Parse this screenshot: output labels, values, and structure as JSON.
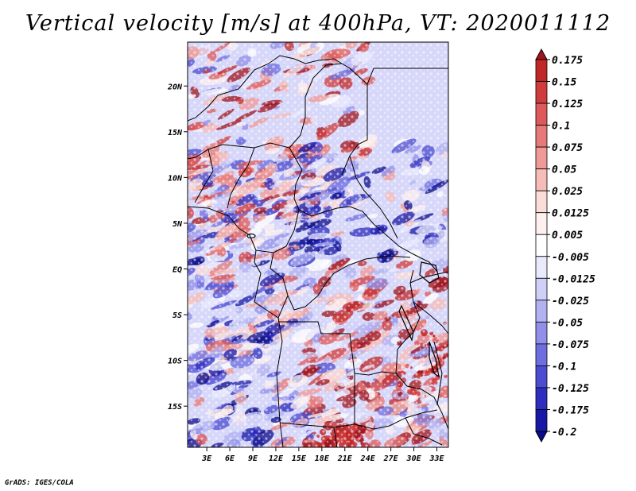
{
  "title": "Vertical velocity [m/s] at 400hPa, VT: 2020011112",
  "credit": "GrADS: IGES/COLA",
  "map": {
    "lat_labels": [
      "20N",
      "15N",
      "10N",
      "5N",
      "EQ",
      "5S",
      "10S",
      "15S"
    ],
    "lon_labels": [
      "3E",
      "6E",
      "9E",
      "12E",
      "15E",
      "18E",
      "21E",
      "24E",
      "27E",
      "30E",
      "33E"
    ],
    "extent": {
      "lon_min": 0.5,
      "lon_max": 34.5,
      "lat_min": -19.5,
      "lat_max": 24.8
    }
  },
  "colorbar": {
    "labels": [
      "0.175",
      "0.15",
      "0.125",
      "0.1",
      "0.075",
      "0.05",
      "0.025",
      "0.0125",
      "0.005",
      "-0.005",
      "-0.0125",
      "-0.025",
      "-0.05",
      "-0.075",
      "-0.1",
      "-0.125",
      "-0.175",
      "-0.2"
    ],
    "colors": [
      "#a0141e",
      "#c02828",
      "#d03c3c",
      "#de5a5a",
      "#e77a78",
      "#ef9a96",
      "#f5bcb8",
      "#fadcd8",
      "#fdf0ee",
      "#ffffff",
      "#eaeafd",
      "#cfcff8",
      "#b2b2f2",
      "#9090ea",
      "#6e6ee0",
      "#4c4cd2",
      "#2e2ec0",
      "#1818a6",
      "#0c0c8a"
    ]
  }
}
